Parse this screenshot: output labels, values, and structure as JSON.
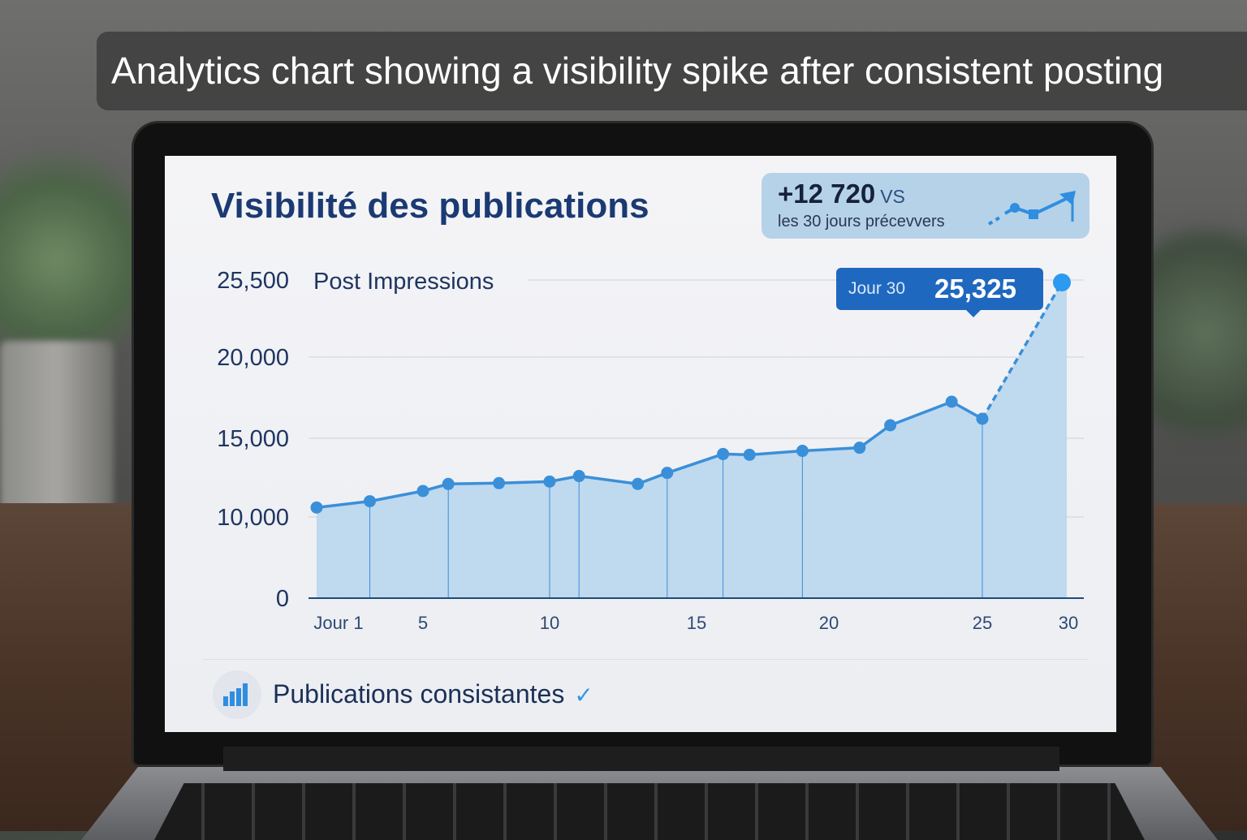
{
  "caption": "Analytics chart showing a visibility spike after consistent posting",
  "dashboard": {
    "title": "Visibilité des publications",
    "summary": {
      "delta": "+12 720",
      "vs": "VS",
      "period": "les 30 jours précevvers",
      "icon": "trend-up-arrow-icon"
    },
    "tooltip": {
      "day_label": "Jour 30",
      "value": "25,325"
    },
    "footer": {
      "label": "Publications consistantes",
      "icon": "bar-chart-icon",
      "check_icon": "checkmark-icon"
    }
  },
  "colors": {
    "accent": "#3a8fd9",
    "fill": "#b9d6ee",
    "title": "#1b3a73",
    "tooltip": "#1f68bf"
  },
  "chart_data": {
    "type": "area",
    "series": [
      {
        "name": "Post Impressions",
        "x": [
          1,
          3,
          5,
          6,
          8,
          10,
          11,
          13,
          14,
          16,
          17,
          19,
          21,
          22,
          24,
          25,
          30
        ],
        "values": [
          10600,
          11000,
          11650,
          12100,
          12150,
          12250,
          12600,
          12100,
          12800,
          14000,
          13950,
          14200,
          14400,
          15800,
          17250,
          16200,
          25325
        ]
      }
    ],
    "xticks": [
      {
        "v": 1,
        "label": "Jour 1"
      },
      {
        "v": 5,
        "label": "5"
      },
      {
        "v": 10,
        "label": "10"
      },
      {
        "v": 15,
        "label": "15"
      },
      {
        "v": 20,
        "label": "20"
      },
      {
        "v": 25,
        "label": "25"
      },
      {
        "v": 30,
        "label": "30"
      }
    ],
    "yticks": [
      {
        "v": 0,
        "label": "0"
      },
      {
        "v": 10000,
        "label": "10,000"
      },
      {
        "v": 15000,
        "label": "15,000"
      },
      {
        "v": 20000,
        "label": "20,000"
      },
      {
        "v": 25500,
        "label": "25,500"
      }
    ],
    "ylim": [
      0,
      25500
    ],
    "xlim": [
      1,
      30
    ],
    "grid": true,
    "annotation": "Jour 30: 25,325"
  }
}
